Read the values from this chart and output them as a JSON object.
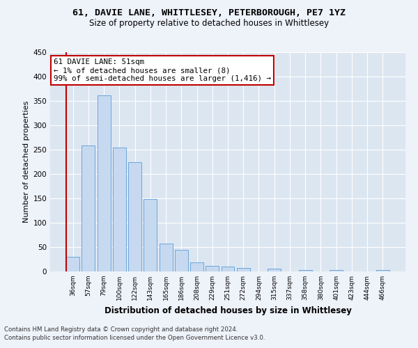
{
  "title1": "61, DAVIE LANE, WHITTLESEY, PETERBOROUGH, PE7 1YZ",
  "title2": "Size of property relative to detached houses in Whittlesey",
  "xlabel": "Distribution of detached houses by size in Whittlesey",
  "ylabel": "Number of detached properties",
  "categories": [
    "36sqm",
    "57sqm",
    "79sqm",
    "100sqm",
    "122sqm",
    "143sqm",
    "165sqm",
    "186sqm",
    "208sqm",
    "229sqm",
    "251sqm",
    "272sqm",
    "294sqm",
    "315sqm",
    "337sqm",
    "358sqm",
    "380sqm",
    "401sqm",
    "423sqm",
    "444sqm",
    "466sqm"
  ],
  "values": [
    30,
    258,
    362,
    255,
    225,
    148,
    57,
    44,
    18,
    12,
    10,
    7,
    0,
    6,
    0,
    3,
    0,
    3,
    0,
    0,
    3
  ],
  "bar_color": "#c6d9f0",
  "bar_edge_color": "#5b9bd5",
  "highlight_line_color": "#c00000",
  "annotation_text": "61 DAVIE LANE: 51sqm\n← 1% of detached houses are smaller (8)\n99% of semi-detached houses are larger (1,416) →",
  "annotation_box_color": "#ffffff",
  "annotation_box_edge_color": "#c00000",
  "ylim": [
    0,
    450
  ],
  "yticks": [
    0,
    50,
    100,
    150,
    200,
    250,
    300,
    350,
    400,
    450
  ],
  "footnote1": "Contains HM Land Registry data © Crown copyright and database right 2024.",
  "footnote2": "Contains public sector information licensed under the Open Government Licence v3.0.",
  "bg_color": "#eef2f9",
  "plot_bg_color": "#dce6f1"
}
